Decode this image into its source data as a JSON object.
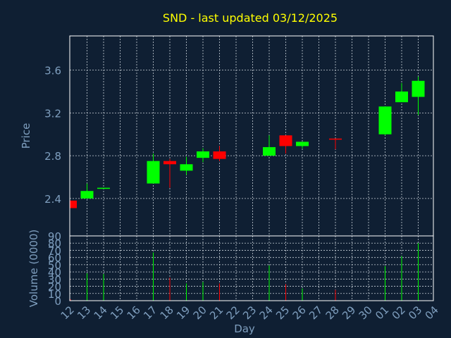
{
  "chart_data": {
    "type": "candlestick",
    "title": "SND - last updated 03/12/2025",
    "xlabel": "Day",
    "ylabel_price": "Price",
    "ylabel_volume": "Volume (0000)",
    "x_tick_labels": [
      "12",
      "13",
      "14",
      "15",
      "16",
      "17",
      "18",
      "19",
      "20",
      "21",
      "22",
      "23",
      "24",
      "25",
      "26",
      "27",
      "28",
      "29",
      "30",
      "01",
      "02",
      "03",
      "04"
    ],
    "price_ylim": [
      2.05,
      3.92
    ],
    "price_ticks": [
      "2.4",
      "2.8",
      "3.2",
      "3.6"
    ],
    "price_tick_values": [
      2.4,
      2.8,
      3.2,
      3.6
    ],
    "volume_ylim": [
      0,
      90
    ],
    "volume_ticks": [
      "0",
      "10",
      "20",
      "30",
      "40",
      "50",
      "60",
      "70",
      "80",
      "90"
    ],
    "volume_tick_values": [
      0,
      10,
      20,
      30,
      40,
      50,
      60,
      70,
      80,
      90
    ],
    "grid": true,
    "colors": {
      "up": "#00ff00",
      "down": "#ff0000",
      "background": "#0f1f33",
      "title": "#ffff00",
      "axis": "#7f9fbf",
      "frame": "#ffffff",
      "grid": "#c8d0d8"
    },
    "candles": [
      {
        "x": 0,
        "open": 2.38,
        "close": 2.31,
        "high": 2.38,
        "low": 2.31,
        "volume": 2
      },
      {
        "x": 1,
        "open": 2.4,
        "close": 2.47,
        "high": 2.54,
        "low": 2.4,
        "volume": 38
      },
      {
        "x": 2,
        "open": 2.49,
        "close": 2.5,
        "high": 2.5,
        "low": 2.49,
        "volume": 37
      },
      {
        "x": 5,
        "open": 2.54,
        "close": 2.75,
        "high": 2.82,
        "low": 2.54,
        "volume": 67
      },
      {
        "x": 6,
        "open": 2.75,
        "close": 2.72,
        "high": 2.77,
        "low": 2.5,
        "volume": 32
      },
      {
        "x": 7,
        "open": 2.66,
        "close": 2.72,
        "high": 2.79,
        "low": 2.62,
        "volume": 24
      },
      {
        "x": 8,
        "open": 2.78,
        "close": 2.84,
        "high": 2.87,
        "low": 2.74,
        "volume": 26
      },
      {
        "x": 9,
        "open": 2.84,
        "close": 2.77,
        "high": 2.89,
        "low": 2.75,
        "volume": 24
      },
      {
        "x": 12,
        "open": 2.8,
        "close": 2.88,
        "high": 2.99,
        "low": 2.8,
        "volume": 49
      },
      {
        "x": 13,
        "open": 2.99,
        "close": 2.89,
        "high": 2.99,
        "low": 2.82,
        "volume": 23
      },
      {
        "x": 14,
        "open": 2.89,
        "close": 2.93,
        "high": 2.93,
        "low": 2.87,
        "volume": 17
      },
      {
        "x": 16,
        "open": 2.96,
        "close": 2.95,
        "high": 2.96,
        "low": 2.86,
        "volume": 15
      },
      {
        "x": 19,
        "open": 3.0,
        "close": 3.26,
        "high": 3.26,
        "low": 2.99,
        "volume": 48
      },
      {
        "x": 20,
        "open": 3.3,
        "close": 3.4,
        "high": 3.48,
        "low": 3.3,
        "volume": 62
      },
      {
        "x": 21,
        "open": 3.35,
        "close": 3.5,
        "high": 3.54,
        "low": 3.18,
        "volume": 80
      }
    ]
  }
}
